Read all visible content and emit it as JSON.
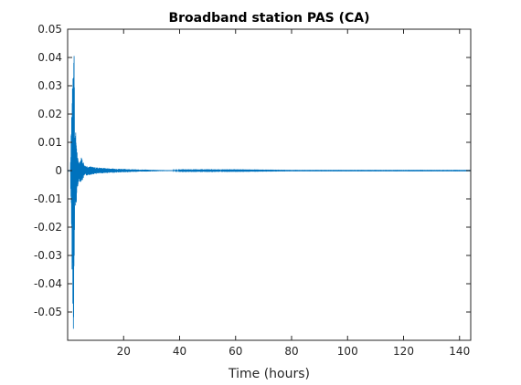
{
  "chart_data": {
    "type": "line",
    "title": "Broadband station PAS (CA)",
    "xlabel": "Time (hours)",
    "ylabel": "",
    "xlim": [
      0,
      144
    ],
    "ylim": [
      -0.06,
      0.05
    ],
    "xticks": [
      20,
      40,
      60,
      80,
      100,
      120,
      140
    ],
    "xtick_labels": [
      "20",
      "40",
      "60",
      "80",
      "100",
      "120",
      "140"
    ],
    "yticks": [
      0.05,
      0.04,
      0.03,
      0.02,
      0.01,
      0,
      -0.01,
      -0.02,
      -0.03,
      -0.04,
      -0.05
    ],
    "ytick_labels": [
      "0.05",
      "0.04",
      "0.03",
      "0.02",
      "0.01",
      "0",
      "-0.01",
      "-0.02",
      "-0.03",
      "-0.04",
      "-0.05"
    ],
    "grid": false,
    "series": [
      {
        "color": "#0072BD",
        "envelope": {
          "x": [
            0,
            1,
            2,
            2.3,
            2.5,
            3,
            3.5,
            4,
            5,
            6,
            8,
            10,
            12,
            15,
            20,
            25,
            30,
            33,
            40,
            60,
            80,
            100,
            120,
            144
          ],
          "upper": [
            0,
            0.0003,
            0.05,
            0.05,
            0.016,
            0.013,
            0.005,
            0.003,
            0.005,
            0.002,
            0.0015,
            0.0012,
            0.001,
            0.0008,
            0.0006,
            0.0004,
            0.0003,
            0.0002,
            0.0001,
            0.0001,
            5e-05,
            5e-05,
            5e-05,
            5e-05
          ],
          "lower": [
            0,
            -0.0003,
            -0.06,
            -0.05,
            -0.016,
            -0.014,
            -0.006,
            -0.004,
            -0.004,
            -0.002,
            -0.0015,
            -0.0012,
            -0.001,
            -0.0008,
            -0.0006,
            -0.0004,
            -0.0003,
            -0.0002,
            -0.0001,
            -0.0001,
            -5e-05,
            -5e-05,
            -5e-05,
            -5e-05
          ]
        }
      }
    ]
  }
}
